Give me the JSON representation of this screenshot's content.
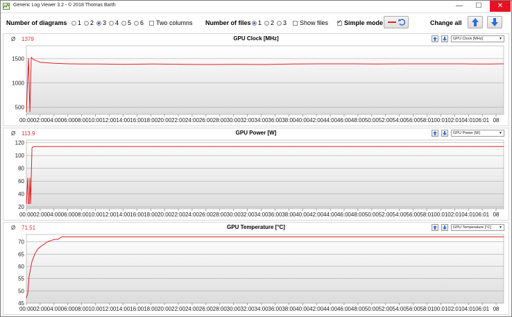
{
  "window": {
    "title": "Generic Log Viewer 3.2 - © 2018 Thomas Barth",
    "minimize": "—",
    "maximize": "☐",
    "close": "✕"
  },
  "toolbar": {
    "number_of_diagrams_label": "Number of diagrams",
    "diagram_options": [
      "1",
      "2",
      "3",
      "4",
      "5",
      "6"
    ],
    "diagram_selected": "3",
    "two_columns_label": "Two columns",
    "two_columns_checked": false,
    "number_of_files_label": "Number of files",
    "file_options": [
      "1",
      "2",
      "3"
    ],
    "file_selected": "1",
    "show_files_label": "Show files",
    "show_files_checked": false,
    "simple_mode_label": "Simple mode",
    "simple_mode_checked": true,
    "change_all_label": "Change all",
    "accent_color": "#e02020",
    "button_icon_color": "#2a6fd6"
  },
  "x_tick_labels": [
    "00:00",
    "02:00",
    "04:00",
    "06:00",
    "08:00",
    "10:00",
    "12:00",
    "14:00",
    "16:00",
    "18:00",
    "20:00",
    "22:00",
    "24:00",
    "26:00",
    "28:00",
    "30:00",
    "32:00",
    "34:00",
    "36:00",
    "38:00",
    "40:00",
    "42:00",
    "44:00",
    "46:00",
    "48:00",
    "50:00",
    "52:00",
    "54:00",
    "56:00",
    "58:01",
    "00:01",
    "02:01",
    "04:01",
    "06:01",
    "08"
  ],
  "chart_data": [
    {
      "type": "line",
      "title": "GPU Clock [MHz]",
      "average_symbol": "Ø",
      "average": "1379",
      "selector": "GPU Clock [MHz]",
      "y_ticks": [
        500,
        1000,
        1500
      ],
      "ylim": [
        350,
        1760
      ],
      "x": [
        0,
        0.3,
        0.5,
        0.7,
        1.0,
        1.5,
        2,
        4,
        6,
        8,
        10,
        14,
        18,
        22,
        26,
        30,
        34,
        38,
        42,
        46,
        50,
        54,
        58,
        62,
        64,
        66,
        68
      ],
      "values": [
        400,
        1500,
        400,
        1520,
        1480,
        1450,
        1420,
        1400,
        1390,
        1385,
        1385,
        1380,
        1385,
        1380,
        1375,
        1380,
        1375,
        1385,
        1390,
        1390,
        1385,
        1390,
        1390,
        1390,
        1385,
        1385,
        1390
      ],
      "color": "#e02020"
    },
    {
      "type": "line",
      "title": "GPU Power [W]",
      "average_symbol": "Ø",
      "average": "113.9",
      "selector": "GPU Power [W]",
      "y_ticks": [
        20,
        40,
        60,
        80,
        100,
        120
      ],
      "ylim": [
        17,
        124
      ],
      "x": [
        0,
        0.2,
        0.3,
        0.4,
        0.5,
        0.6,
        0.8,
        1.0,
        2,
        6,
        10,
        14,
        18,
        22,
        26,
        30,
        34,
        38,
        42,
        46,
        50,
        54,
        58,
        62,
        64,
        66,
        68
      ],
      "values": [
        25,
        65,
        25,
        25,
        65,
        25,
        112,
        114,
        114,
        114,
        114,
        114,
        114,
        114,
        114,
        114,
        114,
        114,
        114,
        114,
        114,
        114,
        114,
        114,
        114,
        114,
        114
      ],
      "color": "#e02020"
    },
    {
      "type": "line",
      "title": "GPU Temperature [°C]",
      "average_symbol": "Ø",
      "average": "71.51",
      "selector": "GPU Temperature [°C]",
      "y_ticks": [
        45,
        50,
        55,
        60,
        65,
        70
      ],
      "ylim": [
        45,
        73
      ],
      "x": [
        0,
        0.2,
        0.4,
        0.8,
        1.2,
        1.6,
        2,
        2.5,
        3,
        3.5,
        4,
        4.5,
        5,
        6,
        10,
        16,
        20,
        30,
        40,
        50,
        60,
        65,
        66,
        68
      ],
      "values": [
        47,
        49,
        56,
        62,
        65,
        67,
        68,
        69,
        70,
        70.5,
        71,
        71,
        72,
        72,
        72,
        72,
        72,
        72,
        72,
        72,
        72,
        72,
        72,
        72
      ],
      "color": "#e02020"
    }
  ]
}
